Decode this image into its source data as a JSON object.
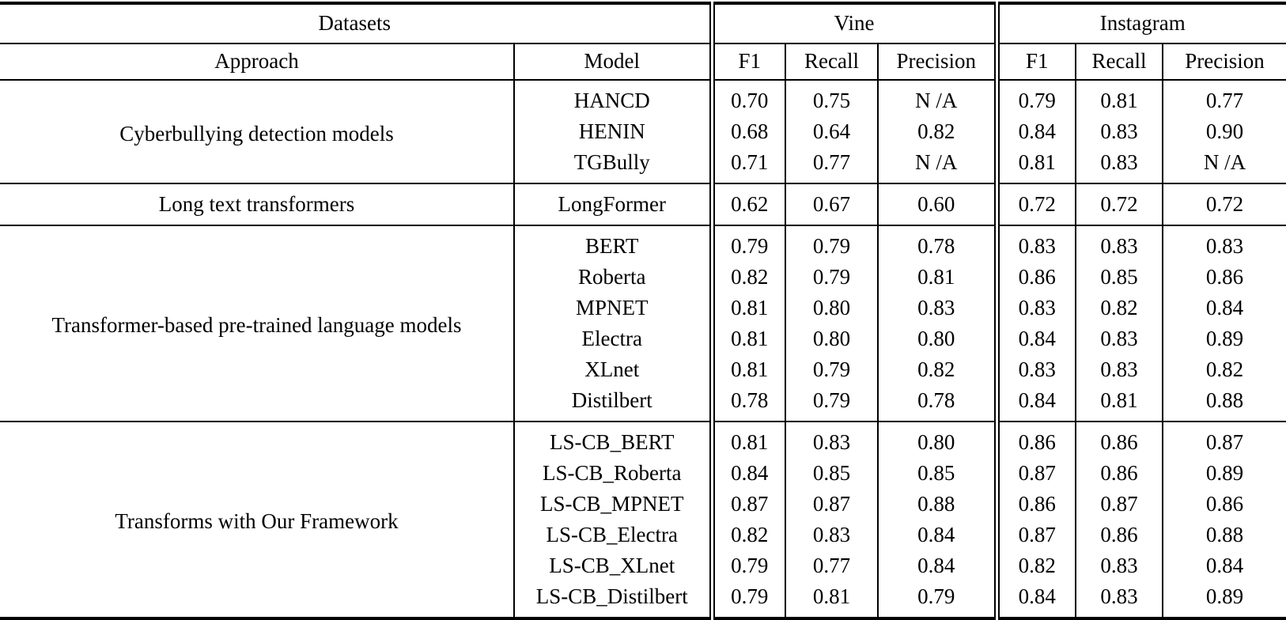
{
  "colors": {
    "text": "#000000",
    "background": "#ffffff",
    "rules": "#000000"
  },
  "chart_data": {
    "type": "table",
    "header": {
      "datasets_label": "Datasets",
      "approach_label": "Approach",
      "model_label": "Model",
      "dataset_columns": [
        {
          "label": "Vine",
          "metrics": [
            "F1",
            "Recall",
            "Precision"
          ]
        },
        {
          "label": "Instagram",
          "metrics": [
            "F1",
            "Recall",
            "Precision"
          ]
        }
      ]
    },
    "groups": [
      {
        "approach": "Cyberbullying detection models",
        "rows": [
          {
            "model": "HANCD",
            "model_bold": false,
            "values": [
              {
                "v": "0.70",
                "b": false
              },
              {
                "v": "0.75",
                "b": false
              },
              {
                "v": "N /A",
                "b": false
              },
              {
                "v": "0.79",
                "b": false
              },
              {
                "v": "0.81",
                "b": false
              },
              {
                "v": "0.77",
                "b": false
              }
            ]
          },
          {
            "model": "HENIN",
            "model_bold": false,
            "values": [
              {
                "v": "0.68",
                "b": false
              },
              {
                "v": "0.64",
                "b": false
              },
              {
                "v": "0.82",
                "b": false
              },
              {
                "v": "0.84",
                "b": false
              },
              {
                "v": "0.83",
                "b": false
              },
              {
                "v": "0.90",
                "b": false
              }
            ]
          },
          {
            "model": "TGBully",
            "model_bold": false,
            "values": [
              {
                "v": "0.71",
                "b": false
              },
              {
                "v": "0.77",
                "b": false
              },
              {
                "v": "N /A",
                "b": false
              },
              {
                "v": "0.81",
                "b": false
              },
              {
                "v": "0.83",
                "b": false
              },
              {
                "v": "N /A",
                "b": false
              }
            ]
          }
        ]
      },
      {
        "approach": "Long text transformers",
        "rows": [
          {
            "model": "LongFormer",
            "model_bold": false,
            "values": [
              {
                "v": "0.62",
                "b": false
              },
              {
                "v": "0.67",
                "b": false
              },
              {
                "v": "0.60",
                "b": false
              },
              {
                "v": "0.72",
                "b": false
              },
              {
                "v": "0.72",
                "b": false
              },
              {
                "v": "0.72",
                "b": false
              }
            ]
          }
        ]
      },
      {
        "approach": "Transformer-based pre-trained language models",
        "rows": [
          {
            "model": "BERT",
            "model_bold": false,
            "values": [
              {
                "v": "0.79",
                "b": false
              },
              {
                "v": "0.79",
                "b": false
              },
              {
                "v": "0.78",
                "b": false
              },
              {
                "v": "0.83",
                "b": false
              },
              {
                "v": "0.83",
                "b": false
              },
              {
                "v": "0.83",
                "b": false
              }
            ]
          },
          {
            "model": "Roberta",
            "model_bold": false,
            "values": [
              {
                "v": "0.82",
                "b": false
              },
              {
                "v": "0.79",
                "b": false
              },
              {
                "v": "0.81",
                "b": false
              },
              {
                "v": "0.86",
                "b": false
              },
              {
                "v": "0.85",
                "b": false
              },
              {
                "v": "0.86",
                "b": false
              }
            ]
          },
          {
            "model": "MPNET",
            "model_bold": false,
            "values": [
              {
                "v": "0.81",
                "b": false
              },
              {
                "v": "0.80",
                "b": false
              },
              {
                "v": "0.83",
                "b": false
              },
              {
                "v": "0.83",
                "b": false
              },
              {
                "v": "0.82",
                "b": false
              },
              {
                "v": "0.84",
                "b": false
              }
            ]
          },
          {
            "model": "Electra",
            "model_bold": false,
            "values": [
              {
                "v": "0.81",
                "b": false
              },
              {
                "v": "0.80",
                "b": false
              },
              {
                "v": "0.80",
                "b": false
              },
              {
                "v": "0.84",
                "b": false
              },
              {
                "v": "0.83",
                "b": false
              },
              {
                "v": "0.89",
                "b": false
              }
            ]
          },
          {
            "model": "XLnet",
            "model_bold": false,
            "values": [
              {
                "v": "0.81",
                "b": false
              },
              {
                "v": "0.79",
                "b": false
              },
              {
                "v": "0.82",
                "b": false
              },
              {
                "v": "0.83",
                "b": false
              },
              {
                "v": "0.83",
                "b": false
              },
              {
                "v": "0.82",
                "b": false
              }
            ]
          },
          {
            "model": "Distilbert",
            "model_bold": false,
            "values": [
              {
                "v": "0.78",
                "b": false
              },
              {
                "v": "0.79",
                "b": false
              },
              {
                "v": "0.78",
                "b": false
              },
              {
                "v": "0.84",
                "b": false
              },
              {
                "v": "0.81",
                "b": false
              },
              {
                "v": "0.88",
                "b": false
              }
            ]
          }
        ]
      },
      {
        "approach": "Transforms with Our Framework",
        "rows": [
          {
            "model": "LS-CB_BERT",
            "model_bold": false,
            "values": [
              {
                "v": "0.81",
                "b": false
              },
              {
                "v": "0.83",
                "b": true
              },
              {
                "v": "0.80",
                "b": false
              },
              {
                "v": "0.86",
                "b": false
              },
              {
                "v": "0.86",
                "b": true
              },
              {
                "v": "0.87",
                "b": false
              }
            ]
          },
          {
            "model": "LS-CB_Roberta",
            "model_bold": true,
            "values": [
              {
                "v": "0.84",
                "b": true
              },
              {
                "v": "0.85",
                "b": true
              },
              {
                "v": "0.85",
                "b": true
              },
              {
                "v": "0.87",
                "b": true
              },
              {
                "v": "0.86",
                "b": true
              },
              {
                "v": "0.89",
                "b": false
              }
            ]
          },
          {
            "model": "LS-CB_MPNET",
            "model_bold": true,
            "values": [
              {
                "v": "0.87",
                "b": true
              },
              {
                "v": "0.87",
                "b": true
              },
              {
                "v": "0.88",
                "b": true
              },
              {
                "v": "0.86",
                "b": true
              },
              {
                "v": "0.87",
                "b": true
              },
              {
                "v": "0.86",
                "b": false
              }
            ]
          },
          {
            "model": "LS-CB_Electra",
            "model_bold": false,
            "values": [
              {
                "v": "0.82",
                "b": false
              },
              {
                "v": "0.83",
                "b": true
              },
              {
                "v": "0.84",
                "b": true
              },
              {
                "v": "0.87",
                "b": true
              },
              {
                "v": "0.86",
                "b": true
              },
              {
                "v": "0.88",
                "b": false
              }
            ]
          },
          {
            "model": "LS-CB_XLnet",
            "model_bold": false,
            "values": [
              {
                "v": "0.79",
                "b": false
              },
              {
                "v": "0.77",
                "b": false
              },
              {
                "v": "0.84",
                "b": true
              },
              {
                "v": "0.82",
                "b": false
              },
              {
                "v": "0.83",
                "b": false
              },
              {
                "v": "0.84",
                "b": false
              }
            ]
          },
          {
            "model": "LS-CB_Distilbert",
            "model_bold": false,
            "values": [
              {
                "v": "0.79",
                "b": false
              },
              {
                "v": "0.81",
                "b": false
              },
              {
                "v": "0.79",
                "b": false
              },
              {
                "v": "0.84",
                "b": false
              },
              {
                "v": "0.83",
                "b": false
              },
              {
                "v": "0.89",
                "b": false
              }
            ]
          }
        ]
      }
    ]
  }
}
